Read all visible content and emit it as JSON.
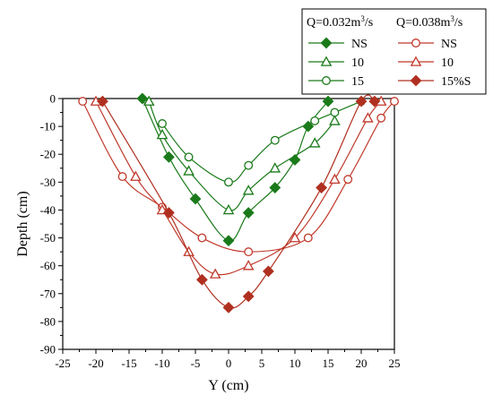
{
  "chart_data": {
    "type": "scatter",
    "xlabel": "Y (cm)",
    "ylabel": "Depth (cm)",
    "xlim": [
      -25,
      25
    ],
    "ylim": [
      -90,
      0
    ],
    "xticks": [
      -25,
      -20,
      -15,
      -10,
      -5,
      0,
      5,
      10,
      15,
      20,
      25
    ],
    "yticks": [
      0,
      -10,
      -20,
      -30,
      -40,
      -50,
      -60,
      -70,
      -80,
      -90
    ],
    "grid": false,
    "legend": {
      "placement": "top-right",
      "groups": [
        {
          "title": "Q=0.032m³/s",
          "title_prefix": "Q=0.032m",
          "title_sup": "3",
          "title_suffix": "/s"
        },
        {
          "title": "Q=0.038m³/s",
          "title_prefix": "Q=0.038m",
          "title_sup": "3",
          "title_suffix": "/s"
        }
      ]
    },
    "series": [
      {
        "name": "NS",
        "group": 0,
        "color": "#1a7a1a",
        "marker": "diamond",
        "filled": true,
        "points": [
          [
            -13,
            0
          ],
          [
            -9,
            -21
          ],
          [
            -5,
            -36
          ],
          [
            0,
            -51
          ],
          [
            3,
            -41
          ],
          [
            7,
            -32
          ],
          [
            10,
            -22
          ],
          [
            12,
            -10
          ],
          [
            15,
            -1
          ]
        ]
      },
      {
        "name": "10",
        "group": 0,
        "color": "#1a7a1a",
        "marker": "triangle",
        "filled": false,
        "points": [
          [
            -12,
            -1
          ],
          [
            -10,
            -13
          ],
          [
            -6,
            -26
          ],
          [
            0,
            -40
          ],
          [
            3,
            -33
          ],
          [
            7,
            -25
          ],
          [
            13,
            -16
          ],
          [
            16,
            -8
          ]
        ]
      },
      {
        "name": "15",
        "group": 0,
        "color": "#1a7a1a",
        "marker": "circle",
        "filled": false,
        "points": [
          [
            -10,
            -9
          ],
          [
            -6,
            -21
          ],
          [
            0,
            -30
          ],
          [
            3,
            -24
          ],
          [
            7,
            -15
          ],
          [
            13,
            -8
          ],
          [
            16,
            -5
          ],
          [
            20,
            -1
          ]
        ]
      },
      {
        "name": "NS",
        "group": 1,
        "color": "#c0392b",
        "marker": "circle",
        "filled": false,
        "points": [
          [
            -22,
            -1
          ],
          [
            -16,
            -28
          ],
          [
            -10,
            -39
          ],
          [
            -4,
            -50
          ],
          [
            3,
            -55
          ],
          [
            12,
            -50
          ],
          [
            18,
            -29
          ],
          [
            23,
            -7
          ],
          [
            25,
            -1
          ]
        ]
      },
      {
        "name": "10",
        "group": 1,
        "color": "#c0392b",
        "marker": "triangle",
        "filled": false,
        "points": [
          [
            -20,
            -1
          ],
          [
            -14,
            -28
          ],
          [
            -10,
            -40
          ],
          [
            -6,
            -55
          ],
          [
            -2,
            -63
          ],
          [
            3,
            -60
          ],
          [
            10,
            -50
          ],
          [
            16,
            -29
          ],
          [
            21,
            -7
          ],
          [
            23,
            -1
          ]
        ]
      },
      {
        "name": "15%S",
        "group": 1,
        "color": "#b03020",
        "marker": "diamond",
        "filled": true,
        "points": [
          [
            -19,
            -1
          ],
          [
            -9,
            -41
          ],
          [
            -4,
            -65
          ],
          [
            0,
            -75
          ],
          [
            3,
            -71
          ],
          [
            6,
            -62
          ],
          [
            14,
            -32
          ],
          [
            20,
            -1
          ],
          [
            22,
            -1
          ]
        ]
      }
    ]
  }
}
